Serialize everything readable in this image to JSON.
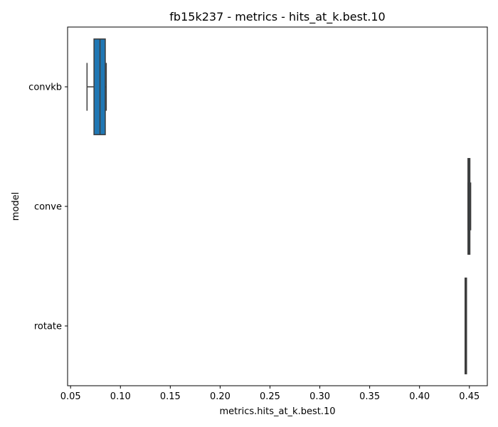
{
  "chart_data": {
    "type": "box",
    "orientation": "horizontal",
    "title": "fb15k237 - metrics - hits_at_k.best.10",
    "xlabel": "metrics.hits_at_k.best.10",
    "ylabel": "model",
    "xlim": [
      0.047,
      0.468
    ],
    "x_ticks": [
      0.05,
      0.1,
      0.15,
      0.2,
      0.25,
      0.3,
      0.35,
      0.4,
      0.45
    ],
    "x_tick_labels": [
      "0.05",
      "0.10",
      "0.15",
      "0.20",
      "0.25",
      "0.30",
      "0.35",
      "0.40",
      "0.45"
    ],
    "categories": [
      "convkb",
      "conve",
      "rotate"
    ],
    "boxes": [
      {
        "category": "convkb",
        "whisker_low": 0.0665,
        "q1": 0.0735,
        "median": 0.0795,
        "q3": 0.0848,
        "whisker_high": 0.0858,
        "color": "#1f77b4"
      },
      {
        "category": "conve",
        "whisker_low": 0.4486,
        "q1": 0.4486,
        "median": 0.4495,
        "q3": 0.4505,
        "whisker_high": 0.4513,
        "color": "#1f77b4"
      },
      {
        "category": "rotate",
        "whisker_low": 0.4457,
        "q1": 0.4457,
        "median": 0.4462,
        "q3": 0.4467,
        "whisker_high": 0.447,
        "color": "#1f77b4"
      }
    ],
    "grid": false,
    "legend": "none"
  }
}
